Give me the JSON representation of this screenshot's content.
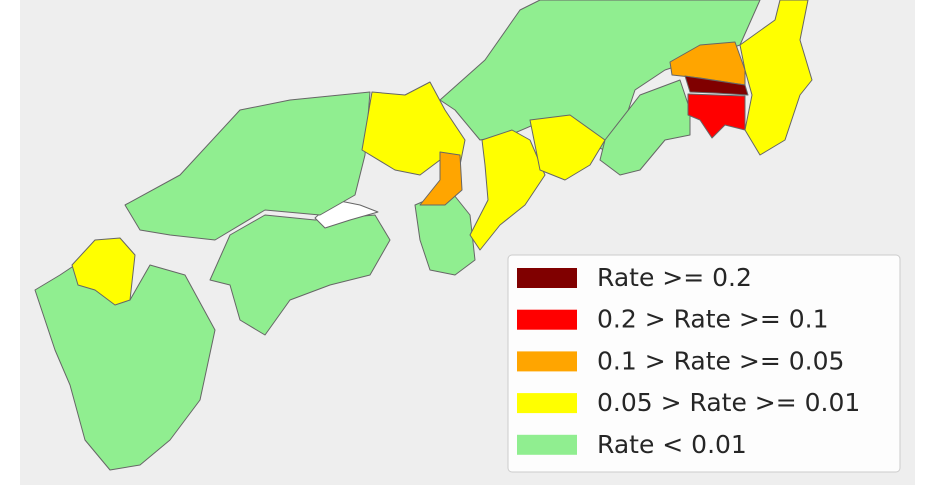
{
  "legend": {
    "items": [
      {
        "label": "Rate >= 0.2",
        "color": "#800000"
      },
      {
        "label": "0.2 > Rate >= 0.1",
        "color": "#ff0000"
      },
      {
        "label": "0.1 > Rate >= 0.05",
        "color": "#ffa500"
      },
      {
        "label": "0.05 > Rate >= 0.01",
        "color": "#ffff00"
      },
      {
        "label": "Rate < 0.01",
        "color": "#90ee90"
      }
    ]
  }
}
